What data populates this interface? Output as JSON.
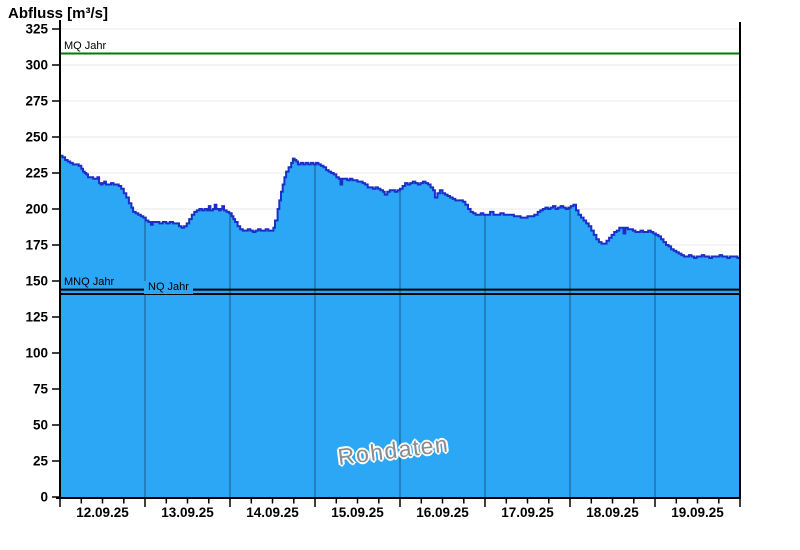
{
  "title": "Abfluss [m³/s]",
  "watermark": "Rohdaten",
  "colors": {
    "area_fill": "#2BA7F6",
    "area_stroke": "#1C2EC8",
    "mq_line": "#077807",
    "low_lines": "#000000",
    "grid_h": "#E8E8E8",
    "grid_v_opacity": 0.45,
    "axis": "#000000",
    "watermark_text": "#8C8C8C"
  },
  "chart_data": {
    "type": "area",
    "title": "Abfluss [m³/s]",
    "ylabel": "Abfluss [m³/s]",
    "xlabel": "",
    "unit": "m³/s",
    "ylim": [
      0,
      331
    ],
    "grid": true,
    "y_ticks": [
      0,
      25,
      50,
      75,
      100,
      125,
      150,
      175,
      200,
      225,
      250,
      275,
      300,
      325
    ],
    "x_tick_labels": [
      "12.09.25",
      "13.09.25",
      "14.09.25",
      "15.09.25",
      "16.09.25",
      "17.09.25",
      "18.09.25",
      "19.09.25"
    ],
    "x_span_days": 8,
    "x_minor_ticks_per_day": 4,
    "reference_lines": [
      {
        "label": "MQ Jahr",
        "value": 308,
        "color": "#077807"
      },
      {
        "label": "MNQ Jahr",
        "value": 144,
        "color": "#000000"
      },
      {
        "label": "NQ Jahr",
        "value": 141,
        "color": "#000000"
      }
    ],
    "annotations": [
      "Rohdaten"
    ],
    "series": [
      {
        "name": "Rohdaten",
        "points": [
          [
            0.0,
            237
          ],
          [
            0.03,
            236
          ],
          [
            0.06,
            234
          ],
          [
            0.09,
            233
          ],
          [
            0.12,
            232
          ],
          [
            0.15,
            231
          ],
          [
            0.19,
            231
          ],
          [
            0.22,
            230
          ],
          [
            0.25,
            228
          ],
          [
            0.27,
            226
          ],
          [
            0.29,
            225
          ],
          [
            0.31,
            224
          ],
          [
            0.33,
            222
          ],
          [
            0.36,
            222
          ],
          [
            0.39,
            221
          ],
          [
            0.42,
            221
          ],
          [
            0.44,
            222
          ],
          [
            0.46,
            218
          ],
          [
            0.48,
            217
          ],
          [
            0.5,
            218
          ],
          [
            0.52,
            219
          ],
          [
            0.54,
            217
          ],
          [
            0.57,
            217
          ],
          [
            0.6,
            218
          ],
          [
            0.63,
            217
          ],
          [
            0.66,
            217
          ],
          [
            0.69,
            216
          ],
          [
            0.72,
            214
          ],
          [
            0.75,
            211
          ],
          [
            0.78,
            208
          ],
          [
            0.81,
            204
          ],
          [
            0.84,
            201
          ],
          [
            0.86,
            198
          ],
          [
            0.89,
            197
          ],
          [
            0.92,
            196
          ],
          [
            0.95,
            195
          ],
          [
            0.98,
            194
          ],
          [
            1.01,
            192
          ],
          [
            1.04,
            191
          ],
          [
            1.07,
            189
          ],
          [
            1.09,
            191
          ],
          [
            1.13,
            191
          ],
          [
            1.17,
            190
          ],
          [
            1.21,
            191
          ],
          [
            1.25,
            190
          ],
          [
            1.29,
            191
          ],
          [
            1.33,
            190
          ],
          [
            1.37,
            190
          ],
          [
            1.4,
            188
          ],
          [
            1.43,
            187
          ],
          [
            1.46,
            188
          ],
          [
            1.49,
            190
          ],
          [
            1.52,
            193
          ],
          [
            1.55,
            196
          ],
          [
            1.58,
            198
          ],
          [
            1.61,
            199
          ],
          [
            1.64,
            200
          ],
          [
            1.67,
            199
          ],
          [
            1.7,
            200
          ],
          [
            1.73,
            199
          ],
          [
            1.75,
            202
          ],
          [
            1.77,
            199
          ],
          [
            1.8,
            200
          ],
          [
            1.82,
            203
          ],
          [
            1.84,
            200
          ],
          [
            1.87,
            199
          ],
          [
            1.89,
            200
          ],
          [
            1.91,
            202
          ],
          [
            1.93,
            199
          ],
          [
            1.96,
            198
          ],
          [
            1.99,
            197
          ],
          [
            2.02,
            195
          ],
          [
            2.04,
            193
          ],
          [
            2.06,
            191
          ],
          [
            2.09,
            188
          ],
          [
            2.12,
            186
          ],
          [
            2.15,
            185
          ],
          [
            2.18,
            185
          ],
          [
            2.21,
            186
          ],
          [
            2.24,
            185
          ],
          [
            2.27,
            184
          ],
          [
            2.3,
            185
          ],
          [
            2.33,
            186
          ],
          [
            2.36,
            185
          ],
          [
            2.39,
            185
          ],
          [
            2.42,
            186
          ],
          [
            2.45,
            185
          ],
          [
            2.48,
            185
          ],
          [
            2.51,
            187
          ],
          [
            2.53,
            192
          ],
          [
            2.56,
            200
          ],
          [
            2.58,
            206
          ],
          [
            2.6,
            212
          ],
          [
            2.62,
            217
          ],
          [
            2.64,
            222
          ],
          [
            2.66,
            226
          ],
          [
            2.69,
            229
          ],
          [
            2.72,
            232
          ],
          [
            2.74,
            235
          ],
          [
            2.76,
            234
          ],
          [
            2.78,
            233
          ],
          [
            2.8,
            231
          ],
          [
            2.83,
            232
          ],
          [
            2.86,
            231
          ],
          [
            2.89,
            232
          ],
          [
            2.92,
            231
          ],
          [
            2.95,
            232
          ],
          [
            2.98,
            231
          ],
          [
            3.01,
            232
          ],
          [
            3.04,
            231
          ],
          [
            3.07,
            230
          ],
          [
            3.1,
            229
          ],
          [
            3.13,
            227
          ],
          [
            3.16,
            226
          ],
          [
            3.19,
            225
          ],
          [
            3.22,
            224
          ],
          [
            3.25,
            222
          ],
          [
            3.28,
            221
          ],
          [
            3.3,
            217
          ],
          [
            3.32,
            221
          ],
          [
            3.35,
            221
          ],
          [
            3.38,
            220
          ],
          [
            3.41,
            221
          ],
          [
            3.44,
            220
          ],
          [
            3.47,
            220
          ],
          [
            3.5,
            219
          ],
          [
            3.53,
            219
          ],
          [
            3.56,
            218
          ],
          [
            3.59,
            217
          ],
          [
            3.62,
            215
          ],
          [
            3.65,
            215
          ],
          [
            3.68,
            214
          ],
          [
            3.71,
            215
          ],
          [
            3.74,
            214
          ],
          [
            3.77,
            213
          ],
          [
            3.8,
            212
          ],
          [
            3.82,
            210
          ],
          [
            3.85,
            212
          ],
          [
            3.88,
            213
          ],
          [
            3.91,
            213
          ],
          [
            3.94,
            212
          ],
          [
            3.97,
            213
          ],
          [
            4.0,
            214
          ],
          [
            4.03,
            216
          ],
          [
            4.06,
            218
          ],
          [
            4.09,
            217
          ],
          [
            4.12,
            218
          ],
          [
            4.15,
            219
          ],
          [
            4.18,
            218
          ],
          [
            4.21,
            217
          ],
          [
            4.24,
            218
          ],
          [
            4.27,
            219
          ],
          [
            4.3,
            218
          ],
          [
            4.33,
            217
          ],
          [
            4.36,
            215
          ],
          [
            4.39,
            213
          ],
          [
            4.41,
            208
          ],
          [
            4.44,
            211
          ],
          [
            4.47,
            213
          ],
          [
            4.5,
            211
          ],
          [
            4.53,
            210
          ],
          [
            4.56,
            209
          ],
          [
            4.59,
            208
          ],
          [
            4.62,
            207
          ],
          [
            4.65,
            206
          ],
          [
            4.68,
            206
          ],
          [
            4.71,
            206
          ],
          [
            4.74,
            205
          ],
          [
            4.77,
            203
          ],
          [
            4.8,
            200
          ],
          [
            4.83,
            198
          ],
          [
            4.86,
            197
          ],
          [
            4.89,
            196
          ],
          [
            4.92,
            196
          ],
          [
            4.95,
            197
          ],
          [
            4.98,
            196
          ],
          [
            5.02,
            196
          ],
          [
            5.06,
            198
          ],
          [
            5.1,
            196
          ],
          [
            5.14,
            196
          ],
          [
            5.18,
            197
          ],
          [
            5.22,
            196
          ],
          [
            5.26,
            196
          ],
          [
            5.3,
            196
          ],
          [
            5.34,
            195
          ],
          [
            5.38,
            195
          ],
          [
            5.42,
            194
          ],
          [
            5.46,
            194
          ],
          [
            5.5,
            195
          ],
          [
            5.54,
            195
          ],
          [
            5.58,
            196
          ],
          [
            5.62,
            198
          ],
          [
            5.65,
            199
          ],
          [
            5.68,
            200
          ],
          [
            5.71,
            201
          ],
          [
            5.74,
            200
          ],
          [
            5.77,
            201
          ],
          [
            5.8,
            202
          ],
          [
            5.83,
            200
          ],
          [
            5.86,
            201
          ],
          [
            5.89,
            202
          ],
          [
            5.92,
            201
          ],
          [
            5.95,
            200
          ],
          [
            5.98,
            201
          ],
          [
            6.01,
            202
          ],
          [
            6.04,
            203
          ],
          [
            6.07,
            199
          ],
          [
            6.1,
            196
          ],
          [
            6.13,
            194
          ],
          [
            6.16,
            192
          ],
          [
            6.19,
            190
          ],
          [
            6.22,
            188
          ],
          [
            6.25,
            185
          ],
          [
            6.28,
            182
          ],
          [
            6.31,
            179
          ],
          [
            6.34,
            177
          ],
          [
            6.37,
            176
          ],
          [
            6.4,
            176
          ],
          [
            6.43,
            178
          ],
          [
            6.46,
            180
          ],
          [
            6.49,
            182
          ],
          [
            6.52,
            184
          ],
          [
            6.55,
            185
          ],
          [
            6.58,
            187
          ],
          [
            6.61,
            187
          ],
          [
            6.63,
            183
          ],
          [
            6.65,
            187
          ],
          [
            6.68,
            186
          ],
          [
            6.71,
            186
          ],
          [
            6.74,
            185
          ],
          [
            6.77,
            184
          ],
          [
            6.8,
            184
          ],
          [
            6.83,
            185
          ],
          [
            6.86,
            184
          ],
          [
            6.89,
            184
          ],
          [
            6.92,
            185
          ],
          [
            6.95,
            184
          ],
          [
            6.98,
            183
          ],
          [
            7.01,
            182
          ],
          [
            7.04,
            181
          ],
          [
            7.07,
            179
          ],
          [
            7.1,
            177
          ],
          [
            7.13,
            175
          ],
          [
            7.16,
            174
          ],
          [
            7.19,
            172
          ],
          [
            7.22,
            171
          ],
          [
            7.25,
            170
          ],
          [
            7.28,
            169
          ],
          [
            7.31,
            168
          ],
          [
            7.34,
            167
          ],
          [
            7.37,
            167
          ],
          [
            7.4,
            168
          ],
          [
            7.43,
            167
          ],
          [
            7.46,
            166
          ],
          [
            7.49,
            167
          ],
          [
            7.52,
            167
          ],
          [
            7.55,
            168
          ],
          [
            7.58,
            167
          ],
          [
            7.61,
            167
          ],
          [
            7.64,
            166
          ],
          [
            7.67,
            167
          ],
          [
            7.7,
            167
          ],
          [
            7.73,
            167
          ],
          [
            7.76,
            168
          ],
          [
            7.79,
            167
          ],
          [
            7.82,
            167
          ],
          [
            7.85,
            166
          ],
          [
            7.88,
            167
          ],
          [
            7.91,
            167
          ],
          [
            7.94,
            167
          ],
          [
            7.97,
            166
          ],
          [
            8.0,
            167
          ]
        ]
      }
    ]
  }
}
